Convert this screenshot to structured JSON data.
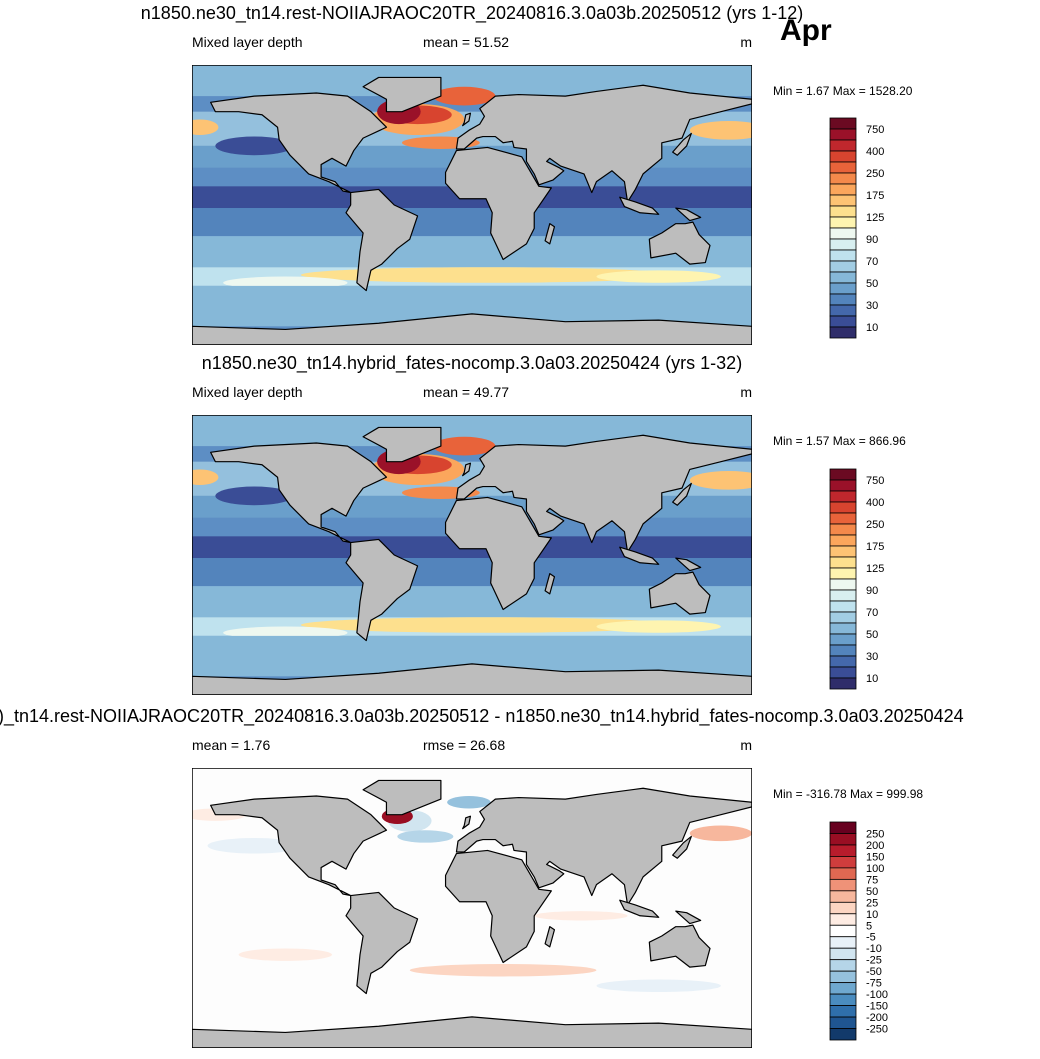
{
  "month": "Apr",
  "panels": [
    {
      "title": "n1850.ne30_tn14.rest-NOIIAJRAOC20TR_20240816.3.0a03b.20250512 (yrs 1-12)",
      "left": "Mixed layer depth",
      "center": "mean =  51.52",
      "units": "m",
      "minmax": "Min =   1.67 Max = 1528.20",
      "colorbar": {
        "colors": [
          "#6b0a22",
          "#9a1129",
          "#c0272d",
          "#d8442f",
          "#e8633a",
          "#f4894b",
          "#fba65c",
          "#fdc374",
          "#fde08e",
          "#fef4b0",
          "#eef8f0",
          "#d8eff0",
          "#bfe2ee",
          "#a2cde3",
          "#86b8d8",
          "#6a9fcb",
          "#5384bc",
          "#4468ab",
          "#3a4d96",
          "#2f2d6a"
        ],
        "labels": [
          750,
          400,
          250,
          175,
          125,
          90,
          70,
          50,
          30,
          10
        ]
      }
    },
    {
      "title": "n1850.ne30_tn14.hybrid_fates-nocomp.3.0a03.20250424 (yrs 1-32)",
      "left": "Mixed layer depth",
      "center": "mean =  49.77",
      "units": "m",
      "minmax": "Min =   1.57 Max = 866.96",
      "colorbar": {
        "colors": [
          "#6b0a22",
          "#9a1129",
          "#c0272d",
          "#d8442f",
          "#e8633a",
          "#f4894b",
          "#fba65c",
          "#fdc374",
          "#fde08e",
          "#fef4b0",
          "#eef8f0",
          "#d8eff0",
          "#bfe2ee",
          "#a2cde3",
          "#86b8d8",
          "#6a9fcb",
          "#5384bc",
          "#4468ab",
          "#3a4d96",
          "#2f2d6a"
        ],
        "labels": [
          750,
          400,
          250,
          175,
          125,
          90,
          70,
          50,
          30,
          10
        ]
      }
    },
    {
      "title": ")_tn14.rest-NOIIAJRAOC20TR_20240816.3.0a03b.20250512 - n1850.ne30_tn14.hybrid_fates-nocomp.3.0a03.20250424",
      "left": "mean =  1.76",
      "center": "rmse =  26.68",
      "units": "m",
      "minmax": "Min = -316.78 Max = 999.98",
      "colorbar": {
        "colors": [
          "#67001f",
          "#990e23",
          "#b71c2c",
          "#cf3d3d",
          "#e06852",
          "#ef9278",
          "#f7b79d",
          "#fcd5c2",
          "#feece3",
          "#ffffff",
          "#e8f1f8",
          "#d1e5f0",
          "#b5d5e8",
          "#95c1dd",
          "#6fa8cf",
          "#4a8cbf",
          "#2f6fab",
          "#1f5591",
          "#123a6b"
        ],
        "labels": [
          250,
          200,
          150,
          100,
          75,
          50,
          25,
          10,
          5,
          -5,
          -10,
          -25,
          -50,
          -75,
          -100,
          -150,
          -200,
          -250
        ]
      }
    }
  ]
}
